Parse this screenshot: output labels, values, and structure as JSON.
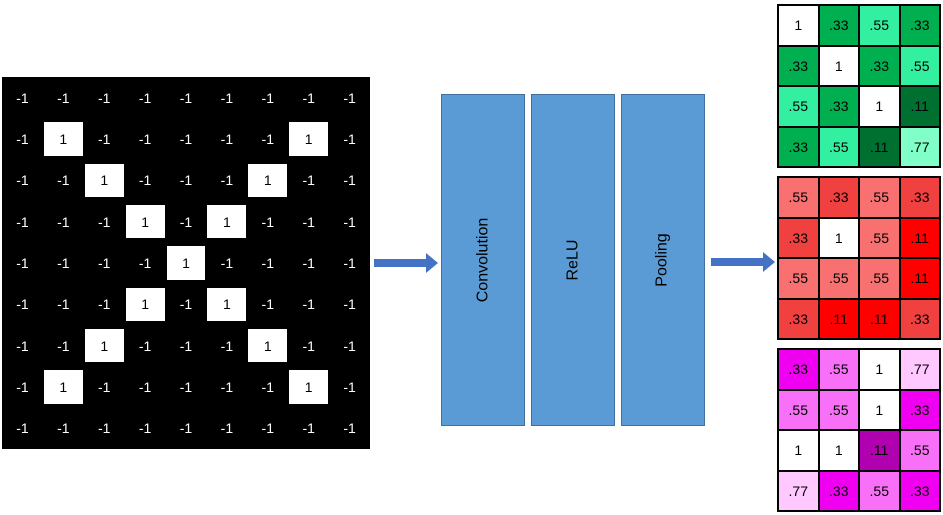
{
  "input": {
    "rows": [
      [
        "-1",
        "-1",
        "-1",
        "-1",
        "-1",
        "-1",
        "-1",
        "-1",
        "-1"
      ],
      [
        "-1",
        "1",
        "-1",
        "-1",
        "-1",
        "-1",
        "-1",
        "1",
        "-1"
      ],
      [
        "-1",
        "-1",
        "1",
        "-1",
        "-1",
        "-1",
        "1",
        "-1",
        "-1"
      ],
      [
        "-1",
        "-1",
        "-1",
        "1",
        "-1",
        "1",
        "-1",
        "-1",
        "-1"
      ],
      [
        "-1",
        "-1",
        "-1",
        "-1",
        "1",
        "-1",
        "-1",
        "-1",
        "-1"
      ],
      [
        "-1",
        "-1",
        "-1",
        "1",
        "-1",
        "1",
        "-1",
        "-1",
        "-1"
      ],
      [
        "-1",
        "-1",
        "1",
        "-1",
        "-1",
        "-1",
        "1",
        "-1",
        "-1"
      ],
      [
        "-1",
        "1",
        "-1",
        "-1",
        "-1",
        "-1",
        "-1",
        "1",
        "-1"
      ],
      [
        "-1",
        "-1",
        "-1",
        "-1",
        "-1",
        "-1",
        "-1",
        "-1",
        "-1"
      ]
    ]
  },
  "stages": [
    {
      "label": "Convolution"
    },
    {
      "label": "ReLU"
    },
    {
      "label": "Pooling"
    }
  ],
  "colors": {
    "arrow": "#4472c4",
    "stage_fill": "#5b9bd5"
  },
  "outputs": [
    {
      "name": "green",
      "rows": [
        [
          "1",
          ".33",
          ".55",
          ".33"
        ],
        [
          ".33",
          "1",
          ".33",
          ".55"
        ],
        [
          ".55",
          ".33",
          "1",
          ".11"
        ],
        [
          ".33",
          ".55",
          ".11",
          ".77"
        ]
      ],
      "colors": [
        [
          "#ffffff",
          "#00b050",
          "#33f0a0",
          "#00b050"
        ],
        [
          "#00b050",
          "#ffffff",
          "#00b050",
          "#33f0a0"
        ],
        [
          "#33f0a0",
          "#00b050",
          "#ffffff",
          "#007030"
        ],
        [
          "#00b050",
          "#33f0a0",
          "#007030",
          "#80ffc8"
        ]
      ]
    },
    {
      "name": "red",
      "rows": [
        [
          ".55",
          ".33",
          ".55",
          ".33"
        ],
        [
          ".33",
          "1",
          ".55",
          ".11"
        ],
        [
          ".55",
          ".55",
          ".55",
          ".11"
        ],
        [
          ".33",
          ".11",
          ".11",
          ".33"
        ]
      ],
      "colors": [
        [
          "#f87070",
          "#f04040",
          "#f87070",
          "#f04040"
        ],
        [
          "#f04040",
          "#ffffff",
          "#f87070",
          "#ff0000"
        ],
        [
          "#f87070",
          "#f87070",
          "#f87070",
          "#ff0000"
        ],
        [
          "#f04040",
          "#ff0000",
          "#ff0000",
          "#f04040"
        ]
      ]
    },
    {
      "name": "magenta",
      "rows": [
        [
          ".33",
          ".55",
          "1",
          ".77"
        ],
        [
          ".55",
          ".55",
          "1",
          ".33"
        ],
        [
          "1",
          "1",
          ".11",
          ".55"
        ],
        [
          ".77",
          ".33",
          ".55",
          ".33"
        ]
      ],
      "colors": [
        [
          "#f000f0",
          "#f870f8",
          "#ffffff",
          "#ffc8ff"
        ],
        [
          "#f870f8",
          "#f870f8",
          "#ffffff",
          "#f000f0"
        ],
        [
          "#ffffff",
          "#ffffff",
          "#b000b0",
          "#f870f8"
        ],
        [
          "#ffc8ff",
          "#f000f0",
          "#f870f8",
          "#f000f0"
        ]
      ]
    }
  ]
}
